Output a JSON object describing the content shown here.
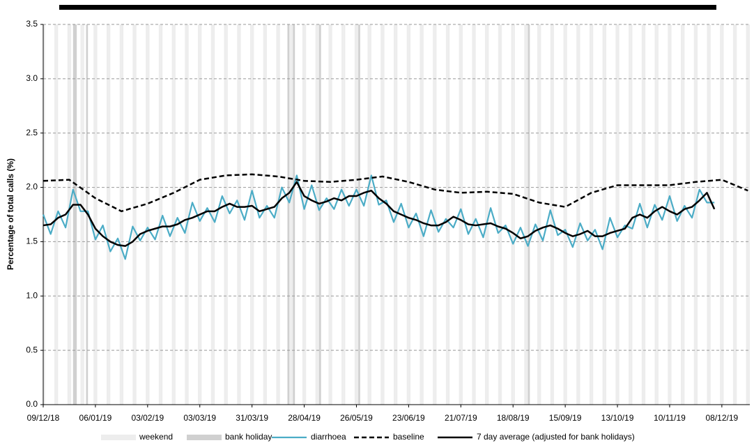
{
  "chart_data": {
    "type": "line",
    "y_label": "Percentage of total calls (%)",
    "xlim": [
      "09/12/18",
      "23/12/19"
    ],
    "xticks": [
      "09/12/18",
      "06/01/19",
      "03/02/19",
      "03/03/19",
      "31/03/19",
      "28/04/19",
      "26/05/19",
      "23/06/19",
      "21/07/19",
      "18/08/19",
      "15/09/19",
      "13/10/19",
      "10/11/19",
      "08/12/19"
    ],
    "ylim": [
      0,
      3.5
    ],
    "yticks": [
      {
        "value": 0,
        "label": "0.0"
      },
      {
        "value": 0.5,
        "label": "0.5"
      },
      {
        "value": 1,
        "label": "1.0"
      },
      {
        "value": 1.5,
        "label": "1.5"
      },
      {
        "value": 2,
        "label": "2.0"
      },
      {
        "value": 2.5,
        "label": "2.5"
      },
      {
        "value": 3,
        "label": "3.0"
      },
      {
        "value": 3.5,
        "label": "3.5"
      }
    ],
    "grid": true,
    "weekend": {
      "name": "weekend",
      "color": "#ededed"
    },
    "bank_holidays": {
      "name": "bank holiday",
      "color": "#d0d0d0",
      "dates": [
        "25/12/18",
        "26/12/18",
        "01/01/19",
        "19/04/19",
        "22/04/19",
        "06/05/19",
        "27/05/19",
        "26/08/19"
      ]
    },
    "series": [
      {
        "name": "diarrhoea",
        "color": "#4bacc6",
        "dash": "solid",
        "width": 2.2,
        "x": [
          "09/12/18",
          "13/12/18",
          "17/12/18",
          "21/12/18",
          "25/12/18",
          "29/12/18",
          "02/01/19",
          "06/01/19",
          "10/01/19",
          "14/01/19",
          "18/01/19",
          "22/01/19",
          "26/01/19",
          "30/01/19",
          "03/02/19",
          "07/02/19",
          "11/02/19",
          "15/02/19",
          "19/02/19",
          "23/02/19",
          "27/02/19",
          "03/03/19",
          "07/03/19",
          "11/03/19",
          "15/03/19",
          "19/03/19",
          "23/03/19",
          "27/03/19",
          "31/03/19",
          "04/04/19",
          "08/04/19",
          "12/04/19",
          "16/04/19",
          "20/04/19",
          "24/04/19",
          "28/04/19",
          "02/05/19",
          "06/05/19",
          "10/05/19",
          "14/05/19",
          "18/05/19",
          "22/05/19",
          "26/05/19",
          "30/05/19",
          "03/06/19",
          "07/06/19",
          "11/06/19",
          "15/06/19",
          "19/06/19",
          "23/06/19",
          "27/06/19",
          "01/07/19",
          "05/07/19",
          "09/07/19",
          "13/07/19",
          "17/07/19",
          "21/07/19",
          "25/07/19",
          "29/07/19",
          "02/08/19",
          "06/08/19",
          "10/08/19",
          "14/08/19",
          "18/08/19",
          "22/08/19",
          "26/08/19",
          "30/08/19",
          "03/09/19",
          "07/09/19",
          "11/09/19",
          "15/09/19",
          "19/09/19",
          "23/09/19",
          "27/09/19",
          "01/10/19",
          "05/10/19",
          "09/10/19",
          "13/10/19",
          "17/10/19",
          "21/10/19",
          "25/10/19",
          "29/10/19",
          "02/11/19",
          "06/11/19",
          "10/11/19",
          "14/11/19",
          "18/11/19",
          "22/11/19",
          "26/11/19",
          "30/11/19",
          "04/12/19"
        ],
        "values": [
          1.75,
          1.57,
          1.78,
          1.63,
          1.98,
          1.78,
          1.78,
          1.52,
          1.65,
          1.41,
          1.53,
          1.34,
          1.64,
          1.51,
          1.63,
          1.52,
          1.74,
          1.55,
          1.72,
          1.58,
          1.86,
          1.69,
          1.81,
          1.68,
          1.92,
          1.76,
          1.88,
          1.7,
          1.97,
          1.72,
          1.83,
          1.72,
          2.0,
          1.86,
          2.11,
          1.8,
          2.02,
          1.79,
          1.9,
          1.8,
          1.98,
          1.83,
          1.98,
          1.83,
          2.11,
          1.84,
          1.88,
          1.68,
          1.85,
          1.63,
          1.76,
          1.55,
          1.79,
          1.59,
          1.71,
          1.63,
          1.8,
          1.57,
          1.71,
          1.54,
          1.81,
          1.58,
          1.65,
          1.48,
          1.63,
          1.46,
          1.66,
          1.51,
          1.79,
          1.56,
          1.61,
          1.45,
          1.67,
          1.51,
          1.61,
          1.43,
          1.72,
          1.54,
          1.65,
          1.62,
          1.85,
          1.63,
          1.84,
          1.7,
          1.92,
          1.69,
          1.83,
          1.72,
          1.98,
          1.86,
          1.86
        ]
      },
      {
        "name": "baseline",
        "color": "#000000",
        "dash": "dashed",
        "width": 2.5,
        "x": [
          "09/12/18",
          "23/12/18",
          "06/01/19",
          "20/01/19",
          "03/02/19",
          "17/02/19",
          "03/03/19",
          "17/03/19",
          "31/03/19",
          "14/04/19",
          "28/04/19",
          "12/05/19",
          "26/05/19",
          "09/06/19",
          "23/06/19",
          "07/07/19",
          "21/07/19",
          "04/08/19",
          "18/08/19",
          "01/09/19",
          "15/09/19",
          "29/09/19",
          "13/10/19",
          "27/10/19",
          "10/11/19",
          "24/11/19",
          "08/12/19",
          "22/12/19"
        ],
        "values": [
          2.06,
          2.07,
          1.9,
          1.78,
          1.85,
          1.95,
          2.07,
          2.11,
          2.12,
          2.1,
          2.06,
          2.05,
          2.07,
          2.1,
          2.05,
          1.98,
          1.95,
          1.96,
          1.94,
          1.86,
          1.82,
          1.95,
          2.02,
          2.02,
          2.02,
          2.05,
          2.07,
          1.97
        ]
      },
      {
        "name": "7 day average (adjusted for bank holidays)",
        "color": "#000000",
        "dash": "solid",
        "width": 2.5,
        "x": [
          "09/12/18",
          "13/12/18",
          "17/12/18",
          "21/12/18",
          "25/12/18",
          "29/12/18",
          "02/01/19",
          "06/01/19",
          "10/01/19",
          "14/01/19",
          "18/01/19",
          "22/01/19",
          "26/01/19",
          "30/01/19",
          "03/02/19",
          "07/02/19",
          "11/02/19",
          "15/02/19",
          "19/02/19",
          "23/02/19",
          "27/02/19",
          "03/03/19",
          "07/03/19",
          "11/03/19",
          "15/03/19",
          "19/03/19",
          "23/03/19",
          "27/03/19",
          "31/03/19",
          "04/04/19",
          "08/04/19",
          "12/04/19",
          "16/04/19",
          "20/04/19",
          "24/04/19",
          "28/04/19",
          "02/05/19",
          "06/05/19",
          "10/05/19",
          "14/05/19",
          "18/05/19",
          "22/05/19",
          "26/05/19",
          "30/05/19",
          "03/06/19",
          "07/06/19",
          "11/06/19",
          "15/06/19",
          "19/06/19",
          "23/06/19",
          "27/06/19",
          "01/07/19",
          "05/07/19",
          "09/07/19",
          "13/07/19",
          "17/07/19",
          "21/07/19",
          "25/07/19",
          "29/07/19",
          "02/08/19",
          "06/08/19",
          "10/08/19",
          "14/08/19",
          "18/08/19",
          "22/08/19",
          "26/08/19",
          "30/08/19",
          "03/09/19",
          "07/09/19",
          "11/09/19",
          "15/09/19",
          "19/09/19",
          "23/09/19",
          "27/09/19",
          "01/10/19",
          "05/10/19",
          "09/10/19",
          "13/10/19",
          "17/10/19",
          "21/10/19",
          "25/10/19",
          "29/10/19",
          "02/11/19",
          "06/11/19",
          "10/11/19",
          "14/11/19",
          "18/11/19",
          "22/11/19",
          "26/11/19",
          "30/11/19",
          "04/12/19"
        ],
        "values": [
          1.65,
          1.66,
          1.72,
          1.75,
          1.84,
          1.84,
          1.75,
          1.62,
          1.55,
          1.5,
          1.47,
          1.46,
          1.5,
          1.57,
          1.6,
          1.62,
          1.64,
          1.64,
          1.66,
          1.7,
          1.72,
          1.75,
          1.78,
          1.78,
          1.82,
          1.85,
          1.82,
          1.82,
          1.83,
          1.78,
          1.8,
          1.82,
          1.9,
          1.95,
          2.05,
          1.92,
          1.88,
          1.85,
          1.87,
          1.9,
          1.88,
          1.92,
          1.92,
          1.95,
          1.97,
          1.9,
          1.85,
          1.78,
          1.75,
          1.72,
          1.7,
          1.67,
          1.65,
          1.65,
          1.68,
          1.73,
          1.7,
          1.66,
          1.65,
          1.66,
          1.67,
          1.64,
          1.62,
          1.58,
          1.53,
          1.55,
          1.6,
          1.63,
          1.65,
          1.62,
          1.58,
          1.55,
          1.57,
          1.6,
          1.55,
          1.55,
          1.58,
          1.6,
          1.62,
          1.72,
          1.75,
          1.72,
          1.78,
          1.82,
          1.78,
          1.75,
          1.8,
          1.82,
          1.88,
          1.95,
          1.8
        ]
      }
    ]
  }
}
